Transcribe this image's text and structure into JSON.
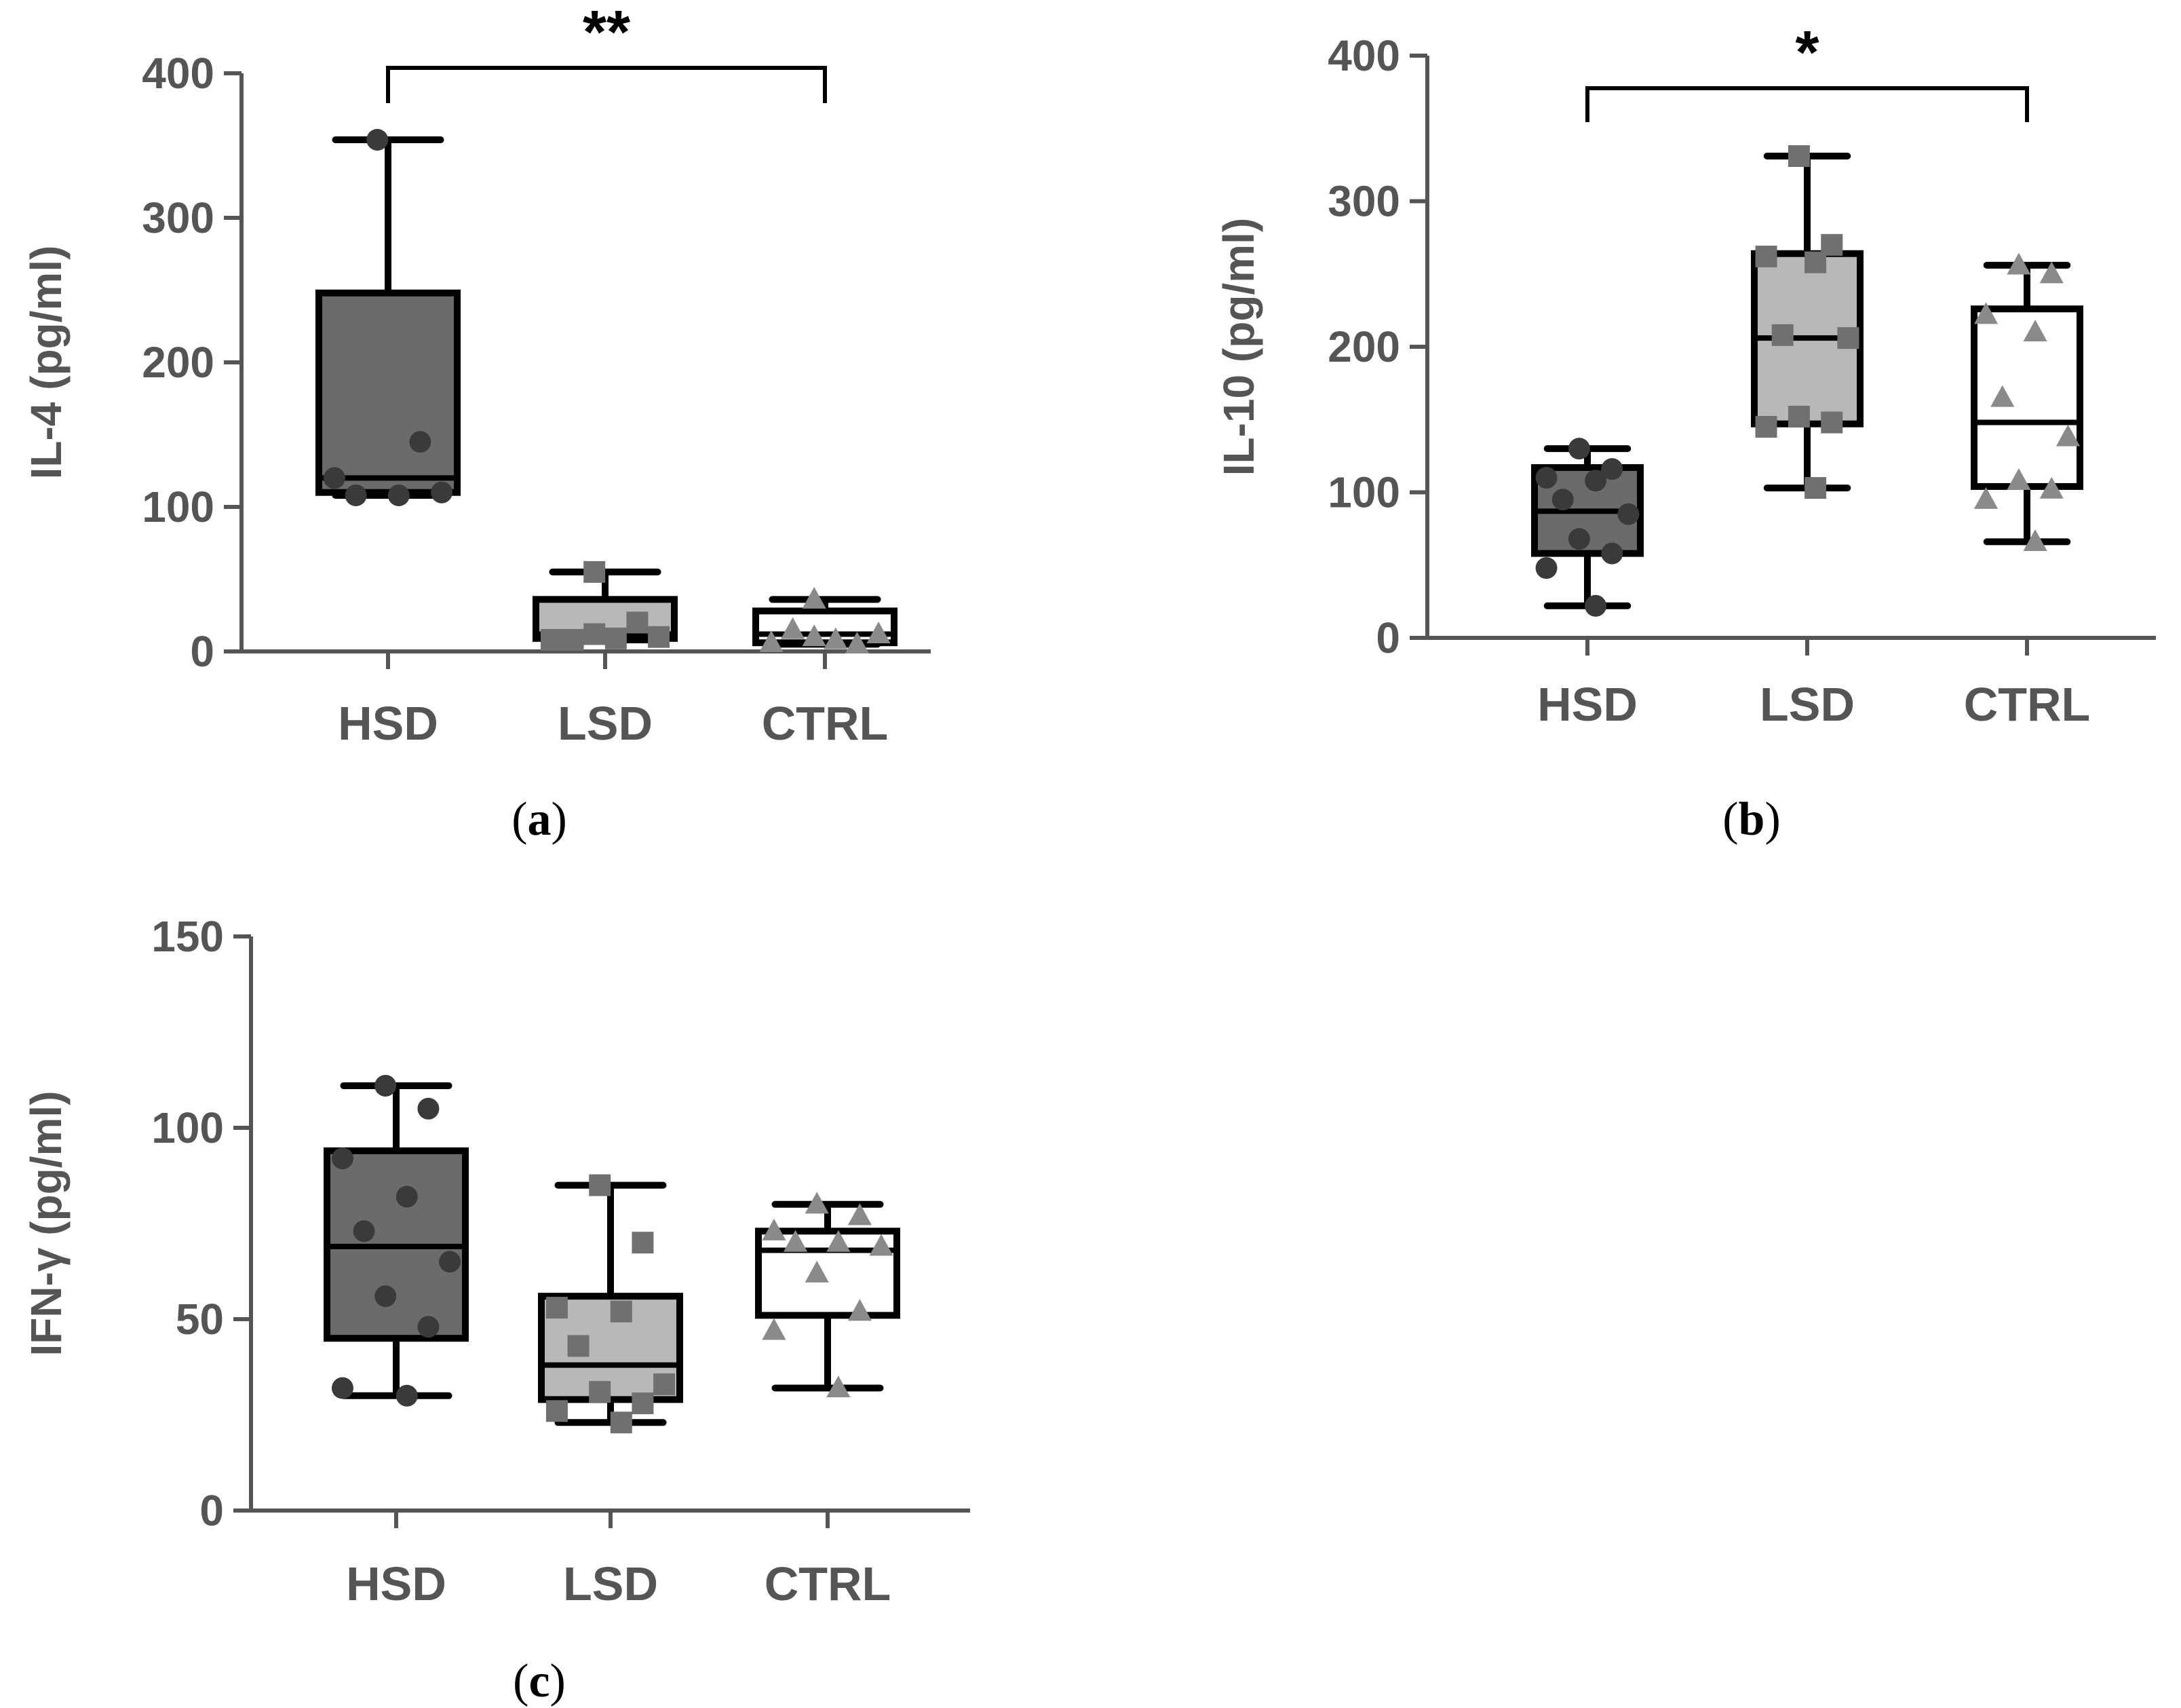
{
  "chart_data": [
    {
      "type": "box",
      "panel": "(a)",
      "ylabel": "IL-4 (pg/ml)",
      "ylim": [
        0,
        400
      ],
      "yticks": [
        0,
        100,
        200,
        300,
        400
      ],
      "categories": [
        "HSD",
        "LSD",
        "CTRL"
      ],
      "boxes": [
        {
          "name": "HSD",
          "min": 108,
          "q1": 110,
          "median": 120,
          "q3": 248,
          "max": 354
        },
        {
          "name": "LSD",
          "min": 8,
          "q1": 9,
          "median": 12,
          "q3": 36,
          "max": 55
        },
        {
          "name": "CTRL",
          "min": 5,
          "q1": 6,
          "median": 12,
          "q3": 28,
          "max": 36
        }
      ],
      "points": [
        {
          "group": "HSD",
          "values": [
            354,
            145,
            120,
            108,
            108,
            110
          ]
        },
        {
          "group": "LSD",
          "values": [
            55,
            20,
            8,
            9,
            8,
            10,
            12
          ]
        },
        {
          "group": "CTRL",
          "values": [
            36,
            5,
            6,
            8,
            15,
            12,
            10
          ]
        }
      ],
      "significance": [
        {
          "from": "HSD",
          "to": "CTRL",
          "label": "**"
        }
      ]
    },
    {
      "type": "box",
      "panel": "(b)",
      "ylabel": "IL-10 (pg/ml)",
      "ylim": [
        0,
        400
      ],
      "yticks": [
        0,
        100,
        200,
        300,
        400
      ],
      "categories": [
        "HSD",
        "LSD",
        "CTRL"
      ],
      "boxes": [
        {
          "name": "HSD",
          "min": 22,
          "q1": 58,
          "median": 87,
          "q3": 117,
          "max": 130
        },
        {
          "name": "LSD",
          "min": 103,
          "q1": 147,
          "median": 206,
          "q3": 264,
          "max": 331
        },
        {
          "name": "CTRL",
          "min": 66,
          "q1": 104,
          "median": 148,
          "q3": 226,
          "max": 256
        }
      ],
      "points": [
        {
          "group": "HSD",
          "values": [
            130,
            116,
            110,
            108,
            95,
            85,
            68,
            58,
            48,
            22
          ]
        },
        {
          "group": "LSD",
          "values": [
            331,
            270,
            262,
            258,
            208,
            206,
            152,
            148,
            145,
            103
          ]
        },
        {
          "group": "CTRL",
          "values": [
            256,
            250,
            222,
            210,
            165,
            138,
            108,
            102,
            95,
            66
          ]
        }
      ],
      "significance": [
        {
          "from": "HSD",
          "to": "CTRL",
          "label": "*"
        }
      ]
    },
    {
      "type": "box",
      "panel": "(c)",
      "ylabel": "IFN-γ (pg/ml)",
      "ylim": [
        0,
        150
      ],
      "yticks": [
        0,
        50,
        100,
        150
      ],
      "categories": [
        "HSD",
        "LSD",
        "CTRL"
      ],
      "boxes": [
        {
          "name": "HSD",
          "min": 30,
          "q1": 45,
          "median": 69,
          "q3": 94,
          "max": 111
        },
        {
          "name": "LSD",
          "min": 23,
          "q1": 29,
          "median": 38,
          "q3": 56,
          "max": 85
        },
        {
          "name": "CTRL",
          "min": 32,
          "q1": 51,
          "median": 68,
          "q3": 73,
          "max": 80
        }
      ],
      "points": [
        {
          "group": "HSD",
          "values": [
            111,
            105,
            92,
            82,
            73,
            65,
            56,
            48,
            32,
            30
          ]
        },
        {
          "group": "LSD",
          "values": [
            85,
            70,
            53,
            52,
            43,
            33,
            31,
            28,
            26,
            23
          ]
        },
        {
          "group": "CTRL",
          "values": [
            80,
            77,
            73,
            70,
            70,
            69,
            62,
            52,
            47,
            32
          ]
        }
      ],
      "significance": []
    }
  ],
  "colors": {
    "HSD_fill": "#6b6b6b",
    "LSD_fill": "#b8b8b8",
    "CTRL_fill": "#ffffff",
    "HSD_point": "#3a3a3a",
    "LSD_point": "#707070",
    "CTRL_point": "#8a8a8a",
    "axis": "#555555",
    "box_stroke": "#000000"
  }
}
